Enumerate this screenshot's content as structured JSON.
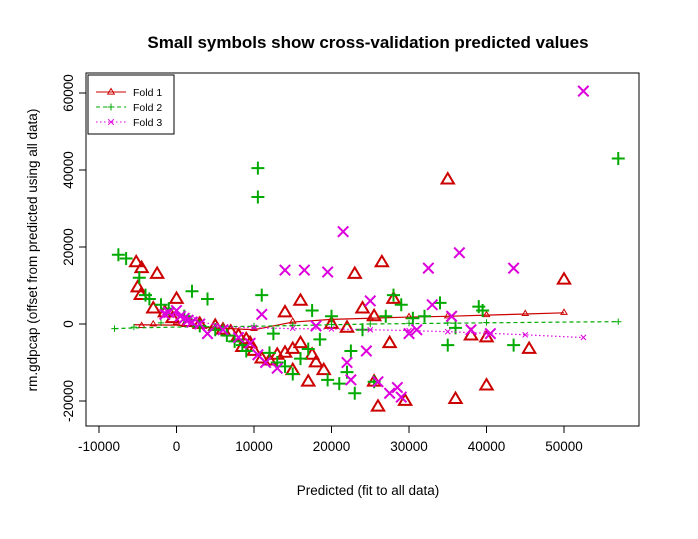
{
  "chart_data": {
    "type": "scatter",
    "title": "Small symbols show cross-validation predicted values",
    "xlabel": "Predicted (fit to all data)",
    "ylabel": "rm.gdpcap  (offset from predicted using all data)",
    "xlim": [
      -10000,
      60000
    ],
    "ylim": [
      -25000,
      65000
    ],
    "x_ticks": [
      -10000,
      0,
      10000,
      20000,
      30000,
      40000,
      50000
    ],
    "y_ticks": [
      -20000,
      0,
      20000,
      40000,
      60000
    ],
    "legend_position": "top-left",
    "grid": false,
    "series": [
      {
        "name": "Fold 1",
        "color": "#cc0000",
        "symbol": "triangle",
        "line_style": "solid",
        "points": [
          [
            -5200,
            16000
          ],
          [
            -4500,
            14500
          ],
          [
            -2500,
            13000
          ],
          [
            -5000,
            9500
          ],
          [
            -4600,
            7500
          ],
          [
            0,
            6500
          ],
          [
            -3000,
            4000
          ],
          [
            -1500,
            3000
          ],
          [
            -500,
            1500
          ],
          [
            1500,
            500
          ],
          [
            3000,
            0
          ],
          [
            5000,
            -500
          ],
          [
            6000,
            -1500
          ],
          [
            7000,
            -2000
          ],
          [
            8000,
            -3000
          ],
          [
            9000,
            -4000
          ],
          [
            9500,
            -5000
          ],
          [
            8500,
            -6000
          ],
          [
            10000,
            -7000
          ],
          [
            11000,
            -9000
          ],
          [
            12000,
            -9500
          ],
          [
            13000,
            -8000
          ],
          [
            14000,
            -7500
          ],
          [
            15000,
            -6500
          ],
          [
            16000,
            -5000
          ],
          [
            17500,
            -8000
          ],
          [
            18000,
            -10000
          ],
          [
            17000,
            -15000
          ],
          [
            14000,
            3000
          ],
          [
            16000,
            6000
          ],
          [
            20000,
            0
          ],
          [
            22000,
            -1000
          ],
          [
            23000,
            13000
          ],
          [
            26500,
            16000
          ],
          [
            24000,
            4000
          ],
          [
            25500,
            2000
          ],
          [
            27500,
            -5000
          ],
          [
            28000,
            6500
          ],
          [
            29500,
            -20000
          ],
          [
            26000,
            -21500
          ],
          [
            25500,
            -15000
          ],
          [
            35000,
            37500
          ],
          [
            36000,
            -19500
          ],
          [
            38000,
            -3000
          ],
          [
            40000,
            -3500
          ],
          [
            40000,
            -16000
          ],
          [
            45500,
            -6500
          ],
          [
            50000,
            11500
          ],
          [
            15000,
            -12000
          ],
          [
            19000,
            -12000
          ]
        ],
        "smooth_line": [
          [
            -5500,
            -200
          ],
          [
            0,
            -300
          ],
          [
            5000,
            -1000
          ],
          [
            10000,
            -1500
          ],
          [
            15000,
            500
          ],
          [
            20000,
            1200
          ],
          [
            25000,
            1500
          ],
          [
            30000,
            1800
          ],
          [
            35000,
            2000
          ],
          [
            40000,
            2300
          ],
          [
            45000,
            2600
          ],
          [
            50000,
            2900
          ]
        ],
        "cv_points": [
          [
            -4500,
            -400
          ],
          [
            -3000,
            0
          ],
          [
            0,
            500
          ],
          [
            5000,
            -800
          ],
          [
            10000,
            -1200
          ],
          [
            15000,
            700
          ],
          [
            20000,
            1200
          ],
          [
            25000,
            1600
          ],
          [
            30000,
            1900
          ],
          [
            35000,
            2100
          ],
          [
            40000,
            2400
          ],
          [
            45000,
            2700
          ],
          [
            50000,
            3000
          ]
        ]
      },
      {
        "name": "Fold 2",
        "color": "#00aa00",
        "symbol": "plus",
        "line_style": "dashed",
        "points": [
          [
            -7500,
            18000
          ],
          [
            -6500,
            17000
          ],
          [
            -4800,
            12000
          ],
          [
            -4000,
            7500
          ],
          [
            -3500,
            6500
          ],
          [
            -2000,
            5000
          ],
          [
            -1000,
            4000
          ],
          [
            2000,
            8500
          ],
          [
            4000,
            6500
          ],
          [
            1000,
            2000
          ],
          [
            3000,
            -500
          ],
          [
            5000,
            -1500
          ],
          [
            6500,
            -3000
          ],
          [
            7500,
            -4500
          ],
          [
            8500,
            -5500
          ],
          [
            9000,
            -7000
          ],
          [
            10500,
            40500
          ],
          [
            10500,
            33000
          ],
          [
            11000,
            7500
          ],
          [
            12000,
            -7500
          ],
          [
            13000,
            -10000
          ],
          [
            14000,
            -11000
          ],
          [
            15000,
            -13000
          ],
          [
            16000,
            -9000
          ],
          [
            17000,
            -6500
          ],
          [
            17500,
            3500
          ],
          [
            18500,
            -4000
          ],
          [
            19500,
            -14500
          ],
          [
            21000,
            -15500
          ],
          [
            22000,
            -12500
          ],
          [
            22500,
            -7000
          ],
          [
            23000,
            -18000
          ],
          [
            25500,
            -15000
          ],
          [
            27000,
            2000
          ],
          [
            28000,
            7500
          ],
          [
            29000,
            5000
          ],
          [
            30500,
            1500
          ],
          [
            32000,
            2000
          ],
          [
            34000,
            5500
          ],
          [
            35000,
            -5500
          ],
          [
            39000,
            4500
          ],
          [
            39500,
            3500
          ],
          [
            43500,
            -5500
          ],
          [
            57000,
            43000
          ],
          [
            20000,
            2000
          ],
          [
            24000,
            -1500
          ],
          [
            12500,
            -2500
          ],
          [
            36000,
            -1000
          ]
        ],
        "smooth_line": [
          [
            -8000,
            -1200
          ],
          [
            -5000,
            -1000
          ],
          [
            0,
            -800
          ],
          [
            5000,
            -700
          ],
          [
            10000,
            -600
          ],
          [
            15000,
            -400
          ],
          [
            20000,
            -200
          ],
          [
            25000,
            0
          ],
          [
            30000,
            100
          ],
          [
            35000,
            200
          ],
          [
            40000,
            300
          ],
          [
            45000,
            400
          ],
          [
            50000,
            500
          ],
          [
            57000,
            600
          ]
        ],
        "cv_points": [
          [
            -8000,
            -1200
          ],
          [
            -5500,
            -800
          ],
          [
            -2000,
            300
          ],
          [
            2000,
            800
          ],
          [
            6000,
            -700
          ],
          [
            10000,
            -500
          ],
          [
            15000,
            -300
          ],
          [
            20000,
            -100
          ],
          [
            25000,
            0
          ],
          [
            30000,
            200
          ],
          [
            35000,
            300
          ],
          [
            40000,
            400
          ],
          [
            57000,
            600
          ]
        ]
      },
      {
        "name": "Fold 3",
        "color": "#dd00dd",
        "symbol": "cross",
        "line_style": "dotted",
        "points": [
          [
            -1500,
            2500
          ],
          [
            -1000,
            3000
          ],
          [
            0,
            3500
          ],
          [
            500,
            2000
          ],
          [
            1000,
            1500
          ],
          [
            1500,
            1000
          ],
          [
            2000,
            500
          ],
          [
            3000,
            0
          ],
          [
            4000,
            -2500
          ],
          [
            6000,
            -1500
          ],
          [
            8000,
            -3500
          ],
          [
            9500,
            -5000
          ],
          [
            10500,
            -8000
          ],
          [
            11500,
            -10000
          ],
          [
            13000,
            -11500
          ],
          [
            14000,
            14000
          ],
          [
            16500,
            14000
          ],
          [
            19500,
            13500
          ],
          [
            21500,
            24000
          ],
          [
            22000,
            -10000
          ],
          [
            22500,
            -14500
          ],
          [
            24500,
            -7000
          ],
          [
            25000,
            6000
          ],
          [
            26000,
            -15000
          ],
          [
            27500,
            -18000
          ],
          [
            28500,
            -16500
          ],
          [
            29000,
            -19000
          ],
          [
            30000,
            -2500
          ],
          [
            31000,
            -1500
          ],
          [
            32500,
            14500
          ],
          [
            33000,
            5000
          ],
          [
            35500,
            2000
          ],
          [
            36500,
            18500
          ],
          [
            38000,
            -1500
          ],
          [
            40500,
            -2500
          ],
          [
            43500,
            14500
          ],
          [
            52500,
            60500
          ],
          [
            11000,
            2500
          ],
          [
            18000,
            -500
          ]
        ],
        "smooth_line": [
          [
            -1500,
            3000
          ],
          [
            0,
            2200
          ],
          [
            2500,
            1000
          ],
          [
            5000,
            -300
          ],
          [
            7500,
            -800
          ],
          [
            10000,
            -1000
          ],
          [
            15000,
            -1200
          ],
          [
            20000,
            -1300
          ],
          [
            25000,
            -1500
          ],
          [
            30000,
            -1700
          ],
          [
            35000,
            -2000
          ],
          [
            40000,
            -2400
          ],
          [
            45000,
            -2800
          ],
          [
            50000,
            -3300
          ],
          [
            52500,
            -3500
          ]
        ],
        "cv_points": [
          [
            -1500,
            3000
          ],
          [
            0,
            2500
          ],
          [
            2500,
            1200
          ],
          [
            5000,
            -400
          ],
          [
            10000,
            -900
          ],
          [
            15000,
            -1100
          ],
          [
            20000,
            -1300
          ],
          [
            25000,
            -1500
          ],
          [
            30000,
            -1700
          ],
          [
            35000,
            -2000
          ],
          [
            40000,
            -2400
          ],
          [
            45000,
            -2800
          ],
          [
            52500,
            -3500
          ]
        ]
      }
    ]
  }
}
